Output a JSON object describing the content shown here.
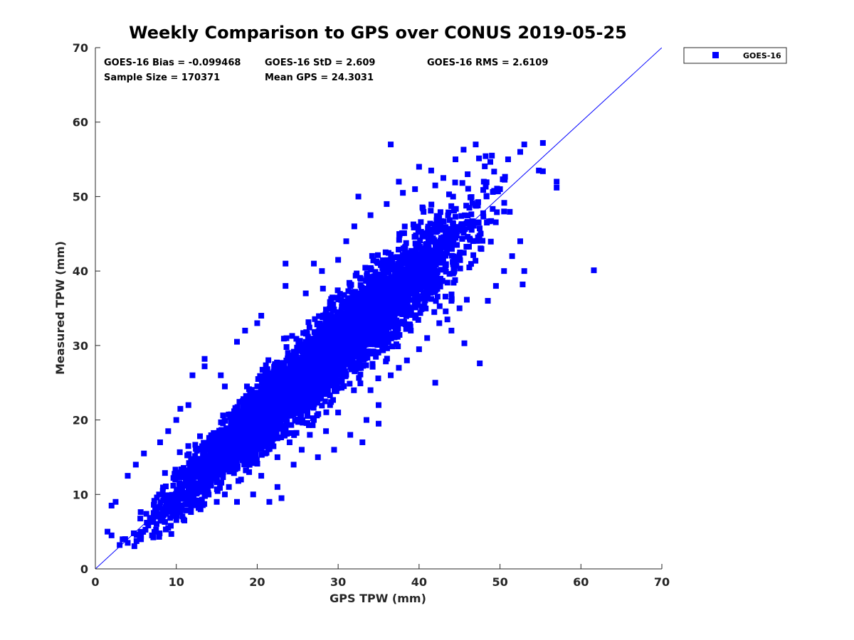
{
  "chart_data": {
    "type": "scatter",
    "title": "Weekly Comparison to GPS over CONUS 2019-05-25",
    "xlabel": "GPS TPW (mm)",
    "ylabel": "Measured TPW (mm)",
    "xlim": [
      0,
      70
    ],
    "ylim": [
      0,
      70
    ],
    "xticks": [
      0,
      10,
      20,
      30,
      40,
      50,
      60,
      70
    ],
    "yticks": [
      0,
      10,
      20,
      30,
      40,
      50,
      60,
      70
    ],
    "grid": false,
    "legend_position": "outside-top-right",
    "reference_line": {
      "name": "1:1 line",
      "x": [
        0,
        70
      ],
      "y": [
        0,
        70
      ],
      "color": "#0000ff"
    },
    "stats": {
      "bias": "GOES-16 Bias = -0.099468",
      "std": "GOES-16 StD = 2.609",
      "rms": "GOES-16 RMS = 2.6109",
      "sample_size": "Sample Size = 170371",
      "mean_gps": "Mean GPS = 24.3031"
    },
    "series": [
      {
        "name": "GOES-16",
        "color": "#0000ff",
        "marker": "square",
        "core_trend": {
          "x_range": [
            1.5,
            53
          ],
          "slope": 1.0,
          "intercept": -0.1,
          "spread_std": 2.6
        },
        "points": [
          [
            55.3,
            57.2
          ],
          [
            53.0,
            57.0
          ],
          [
            52.5,
            56.0
          ],
          [
            51.0,
            55.0
          ],
          [
            49.0,
            55.5
          ],
          [
            47.0,
            57.0
          ],
          [
            45.5,
            56.3
          ],
          [
            44.5,
            55.0
          ],
          [
            54.8,
            53.5
          ],
          [
            55.3,
            53.4
          ],
          [
            57.0,
            52.0
          ],
          [
            57.0,
            51.2
          ],
          [
            61.6,
            40.1
          ],
          [
            47.5,
            27.6
          ],
          [
            45.6,
            30.3
          ],
          [
            42.0,
            25.0
          ],
          [
            53.0,
            40.0
          ],
          [
            52.8,
            38.2
          ],
          [
            52.5,
            44.0
          ],
          [
            51.5,
            42.0
          ],
          [
            50.5,
            40.0
          ],
          [
            49.5,
            38.0
          ],
          [
            48.5,
            36.0
          ],
          [
            45.0,
            35.0
          ],
          [
            44.0,
            32.0
          ],
          [
            43.5,
            33.5
          ],
          [
            32.5,
            50.0
          ],
          [
            37.5,
            52.0
          ],
          [
            40.0,
            54.0
          ],
          [
            41.5,
            53.5
          ],
          [
            36.5,
            57.0
          ],
          [
            27.0,
            41.0
          ],
          [
            23.5,
            41.0
          ],
          [
            23.5,
            38.0
          ],
          [
            20.5,
            34.0
          ],
          [
            13.5,
            28.2
          ],
          [
            13.5,
            27.2
          ],
          [
            11.5,
            22.0
          ],
          [
            10.5,
            21.5
          ],
          [
            34.0,
            24.0
          ],
          [
            35.0,
            22.0
          ],
          [
            35.0,
            19.5
          ],
          [
            33.5,
            20.0
          ],
          [
            31.5,
            18.0
          ],
          [
            33.0,
            17.0
          ],
          [
            30.0,
            21.0
          ],
          [
            29.5,
            16.0
          ],
          [
            28.5,
            18.5
          ],
          [
            27.5,
            15.0
          ],
          [
            25.5,
            16.0
          ],
          [
            24.5,
            14.0
          ],
          [
            22.5,
            15.0
          ],
          [
            20.5,
            12.5
          ],
          [
            19.5,
            10.0
          ],
          [
            17.5,
            9.0
          ],
          [
            16.5,
            11.0
          ],
          [
            21.5,
            9.0
          ],
          [
            22.5,
            11.0
          ],
          [
            23.0,
            9.5
          ],
          [
            12.0,
            26.0
          ],
          [
            15.5,
            26.0
          ],
          [
            16.0,
            24.5
          ],
          [
            17.5,
            30.5
          ],
          [
            18.5,
            32.0
          ],
          [
            20.0,
            33.0
          ],
          [
            26.0,
            37.0
          ],
          [
            28.0,
            40.0
          ],
          [
            30.0,
            41.5
          ],
          [
            31.0,
            44.0
          ],
          [
            32.0,
            46.0
          ],
          [
            34.0,
            47.5
          ],
          [
            36.0,
            49.0
          ],
          [
            38.0,
            50.5
          ],
          [
            39.5,
            51.0
          ],
          [
            42.0,
            51.5
          ],
          [
            43.0,
            52.5
          ],
          [
            46.0,
            53.0
          ],
          [
            48.0,
            52.0
          ],
          [
            50.0,
            51.0
          ],
          [
            50.5,
            48.0
          ],
          [
            44.0,
            36.0
          ],
          [
            42.5,
            33.0
          ],
          [
            41.0,
            31.0
          ],
          [
            40.0,
            29.5
          ],
          [
            38.5,
            28.0
          ],
          [
            37.5,
            27.0
          ],
          [
            36.5,
            26.0
          ],
          [
            29.0,
            22.0
          ],
          [
            27.0,
            20.0
          ],
          [
            26.5,
            18.0
          ],
          [
            24.0,
            17.0
          ],
          [
            21.0,
            15.5
          ],
          [
            19.0,
            13.0
          ],
          [
            18.0,
            12.0
          ],
          [
            8.0,
            17.0
          ],
          [
            9.0,
            18.5
          ],
          [
            10.0,
            20.0
          ],
          [
            6.0,
            15.5
          ],
          [
            5.0,
            14.0
          ],
          [
            4.0,
            12.5
          ],
          [
            2.0,
            8.5
          ],
          [
            2.5,
            9.0
          ],
          [
            1.5,
            5.0
          ],
          [
            2.0,
            4.5
          ],
          [
            3.0,
            3.2
          ],
          [
            4.0,
            3.5
          ],
          [
            5.5,
            4.0
          ],
          [
            7.0,
            4.5
          ],
          [
            9.0,
            5.5
          ],
          [
            11.0,
            6.5
          ],
          [
            13.0,
            8.0
          ],
          [
            15.0,
            9.0
          ],
          [
            16.0,
            10.0
          ]
        ]
      }
    ]
  }
}
